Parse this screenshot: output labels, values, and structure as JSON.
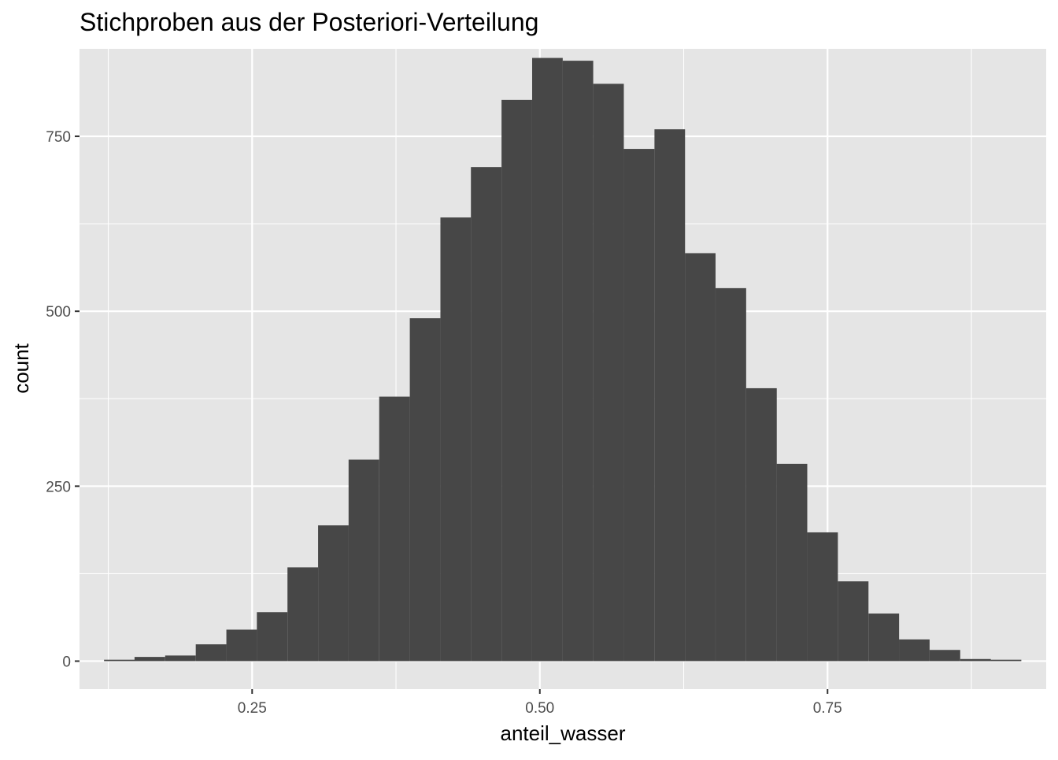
{
  "chart_data": {
    "type": "bar",
    "subtype": "histogram",
    "title": "Stichproben aus der Posteriori-Verteilung",
    "xlabel": "anteil_wasser",
    "ylabel": "count",
    "xlim": [
      0.1,
      0.94
    ],
    "ylim": [
      -40,
      875
    ],
    "x_major_ticks": [
      0.25,
      0.5,
      0.75
    ],
    "x_tick_labels": [
      "0.25",
      "0.50",
      "0.75"
    ],
    "x_minor_ticks": [
      0.125,
      0.375,
      0.625,
      0.875
    ],
    "y_major_ticks": [
      0,
      250,
      500,
      750
    ],
    "y_tick_labels": [
      "0",
      "250",
      "500",
      "750"
    ],
    "y_minor_ticks": [
      125,
      375,
      625
    ],
    "grid": true,
    "legend": "none",
    "colors": {
      "bar_fill": "#474747",
      "panel_background": "#e5e5e5",
      "grid_line": "#ffffff",
      "tick_label": "#4d4d4d"
    },
    "bins": {
      "centers": [
        0.1346,
        0.1611,
        0.1877,
        0.2143,
        0.2409,
        0.2674,
        0.294,
        0.3206,
        0.3471,
        0.3737,
        0.4003,
        0.4269,
        0.4534,
        0.48,
        0.5066,
        0.5331,
        0.5597,
        0.5863,
        0.6129,
        0.6394,
        0.666,
        0.6926,
        0.7191,
        0.7457,
        0.7723,
        0.7989,
        0.8254,
        0.852,
        0.8786,
        0.9051
      ],
      "counts": [
        2,
        6,
        8,
        24,
        45,
        70,
        134,
        194,
        288,
        378,
        490,
        634,
        706,
        802,
        862,
        858,
        825,
        732,
        760,
        583,
        533,
        390,
        282,
        184,
        114,
        68,
        31,
        16,
        3,
        2
      ]
    }
  }
}
